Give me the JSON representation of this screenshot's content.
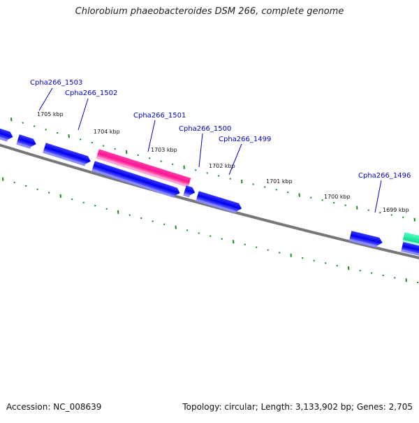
{
  "header": {
    "title": "Chlorobium phaeobacteroides DSM 266, complete genome"
  },
  "footer": {
    "accession": "Accession: NC_008639",
    "summary": "Topology: circular; Length: 3,133,902 bp; Genes: 2,705"
  },
  "map": {
    "backbone_color": "#777777",
    "tick_color": "#1a8a1a",
    "scale_labels": [
      "1705 kbp",
      "1704 kbp",
      "1703 kbp",
      "1702 kbp",
      "1701 kbp",
      "1700 kbp",
      "1699 kbp"
    ],
    "gene_labels": [
      "Cpha266_1503",
      "Cpha266_1502",
      "Cpha266_1501",
      "Cpha266_1500",
      "Cpha266_1499",
      "Cpha266_1496"
    ],
    "feature_colors": {
      "cds": "#0000ee",
      "highlight": "#ff1493",
      "rna": "#20f0a0"
    }
  }
}
